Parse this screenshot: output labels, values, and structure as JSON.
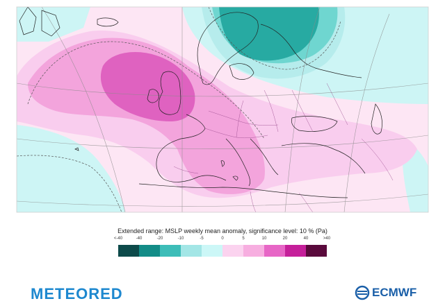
{
  "legend": {
    "title": "Extended range: MSLP weekly mean anomaly, significance level: 10 % (Pa)",
    "ticks": [
      "<-40",
      "-40",
      "-20",
      "-10",
      "-5",
      "0",
      "5",
      "10",
      "20",
      "40",
      ">40"
    ],
    "colors": [
      "#0d4a4a",
      "#138c87",
      "#3dbdb8",
      "#a3e6e6",
      "#ccf7f7",
      "#fbd3ef",
      "#f7aee0",
      "#e766c6",
      "#c51f9a",
      "#5a0a3c"
    ]
  },
  "map_colors": {
    "land_base": "#fde6f4",
    "ocean_cyan": "#cdf5f5",
    "positive_light": "#f9cdee",
    "positive_mid": "#f3a4dc",
    "positive_strong": "#df62c0",
    "negative_light": "#b6ecec",
    "negative_mid": "#6fd6d0",
    "negative_strong": "#27aaa2"
  },
  "logos": {
    "left": "METEORED",
    "right": "ECMWF"
  }
}
